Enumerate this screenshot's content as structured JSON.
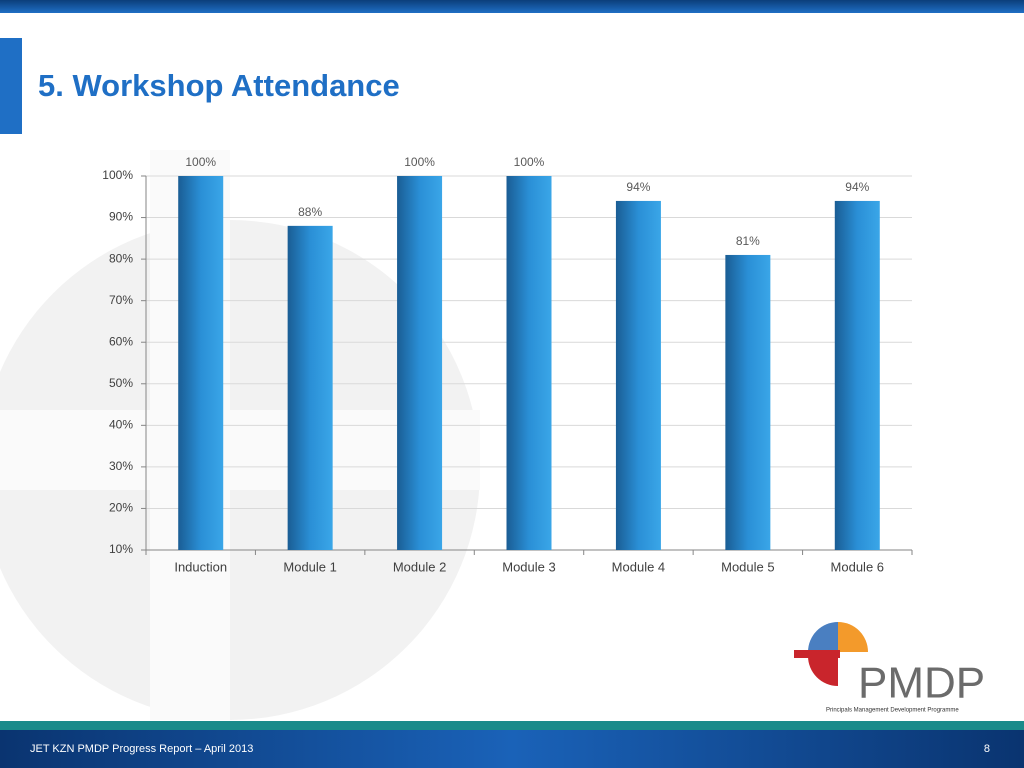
{
  "slide": {
    "title": "5.  Workshop Attendance",
    "footer": "JET KZN PMDP Progress Report – April  2013",
    "page_number": "8",
    "logo": {
      "name": "PMDP",
      "tagline": "Principals Management Development Programme"
    }
  },
  "chart_data": {
    "type": "bar",
    "categories": [
      "Induction",
      "Module 1",
      "Module 2",
      "Module 3",
      "Module 4",
      "Module 5",
      "Module 6"
    ],
    "values": [
      100,
      88,
      100,
      100,
      94,
      81,
      94
    ],
    "value_labels": [
      "100%",
      "88%",
      "100%",
      "100%",
      "94%",
      "81%",
      "94%"
    ],
    "color": "#2a8fd6",
    "ylim": [
      10,
      100
    ],
    "yticks": [
      {
        "value": 10,
        "label": "10%"
      },
      {
        "value": 20,
        "label": "20%"
      },
      {
        "value": 30,
        "label": "30%"
      },
      {
        "value": 40,
        "label": "40%"
      },
      {
        "value": 50,
        "label": "50%"
      },
      {
        "value": 60,
        "label": "60%"
      },
      {
        "value": 70,
        "label": "70%"
      },
      {
        "value": 80,
        "label": "80%"
      },
      {
        "value": 90,
        "label": "90%"
      },
      {
        "value": 100,
        "label": "100%"
      }
    ],
    "grid": true
  }
}
